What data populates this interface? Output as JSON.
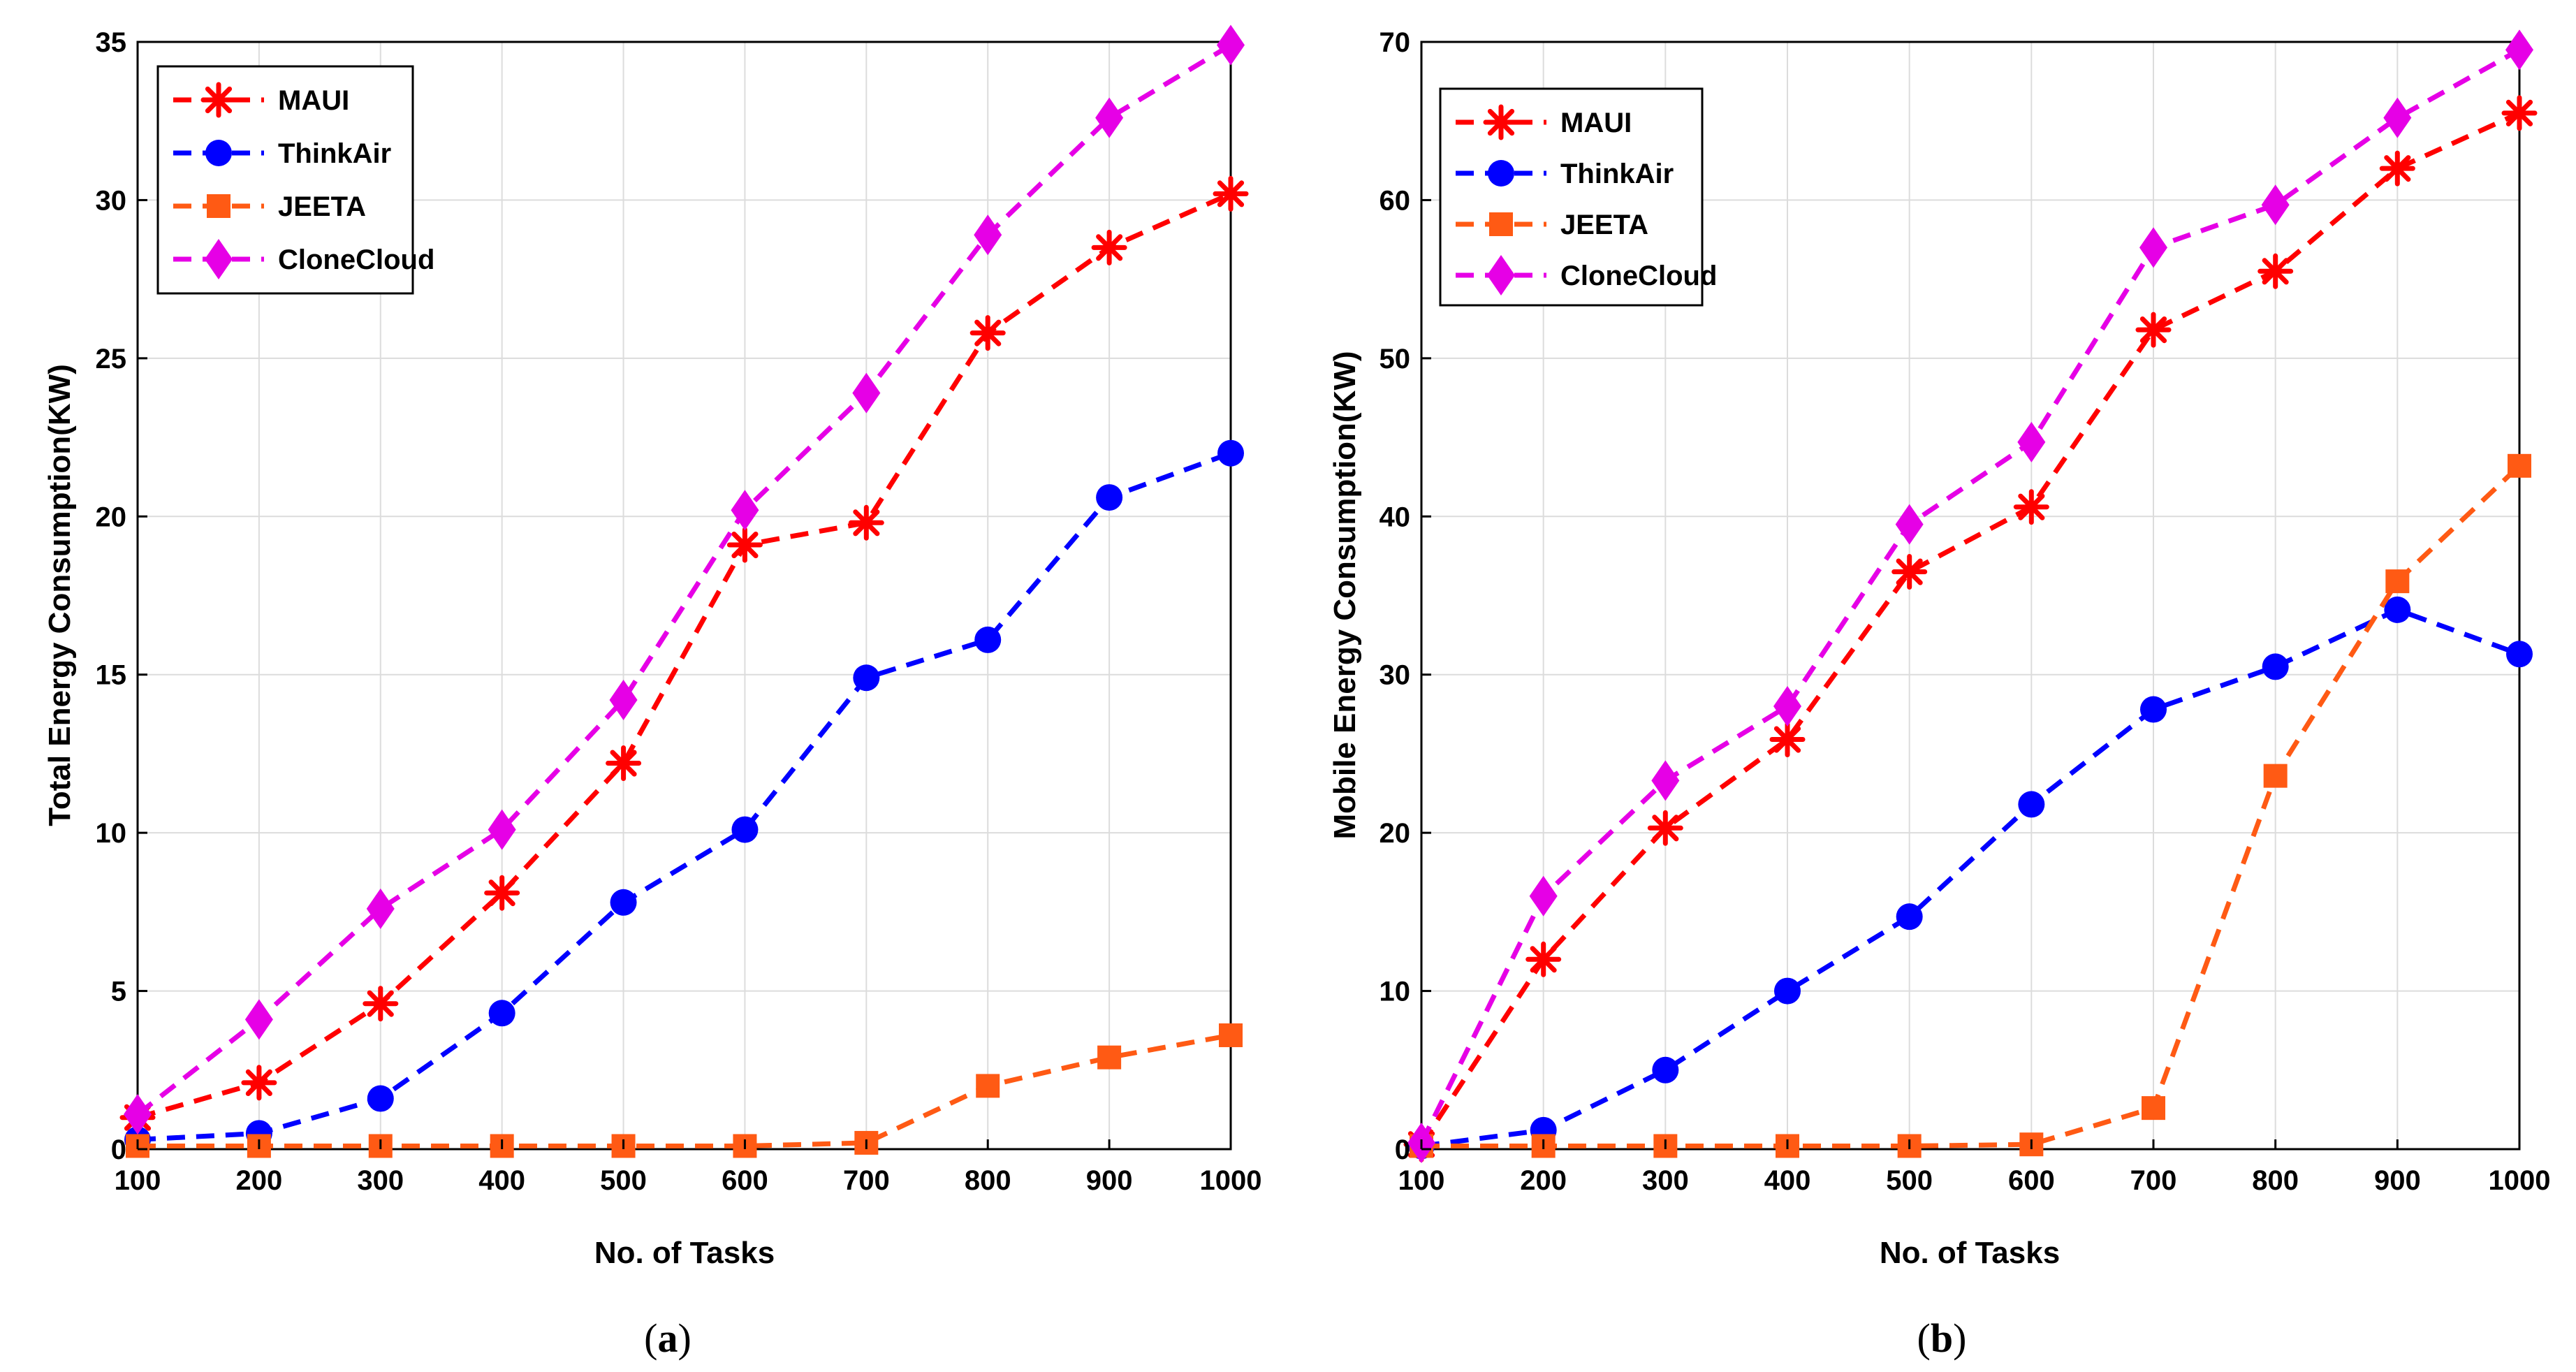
{
  "chart_data": [
    {
      "type": "line",
      "caption_prefix": "(",
      "caption_letter": "a",
      "caption_suffix": ")",
      "xlabel": "No. of Tasks",
      "ylabel": "Total Energy Consumption(KW)",
      "x": [
        100,
        200,
        300,
        400,
        500,
        600,
        700,
        800,
        900,
        1000
      ],
      "xlim": [
        100,
        1000
      ],
      "ylim": [
        0,
        35
      ],
      "yticks": [
        0,
        5,
        10,
        15,
        20,
        25,
        30,
        35
      ],
      "grid": true,
      "legend_position": "top-left",
      "series": [
        {
          "name": "MAUI",
          "color": "#ff0000",
          "marker": "asterisk",
          "values": [
            1.0,
            2.1,
            4.6,
            8.1,
            12.2,
            19.1,
            19.8,
            25.8,
            28.5,
            30.2
          ]
        },
        {
          "name": "ThinkAir",
          "color": "#0000ff",
          "marker": "circle",
          "values": [
            0.3,
            0.5,
            1.6,
            4.3,
            7.8,
            10.1,
            14.9,
            16.1,
            20.6,
            22.0
          ]
        },
        {
          "name": "JEETA",
          "color": "#ff5a14",
          "marker": "square",
          "values": [
            0.1,
            0.1,
            0.1,
            0.1,
            0.1,
            0.1,
            0.2,
            2.0,
            2.9,
            3.6
          ]
        },
        {
          "name": "CloneCloud",
          "color": "#e600e6",
          "marker": "diamond",
          "values": [
            1.1,
            4.1,
            7.6,
            10.1,
            14.2,
            20.2,
            23.9,
            28.9,
            32.6,
            34.9
          ]
        }
      ]
    },
    {
      "type": "line",
      "caption_prefix": "(",
      "caption_letter": "b",
      "caption_suffix": ")",
      "xlabel": "No. of Tasks",
      "ylabel": "Mobile Energy Consumption(KW)",
      "x": [
        100,
        200,
        300,
        400,
        500,
        600,
        700,
        800,
        900,
        1000
      ],
      "xlim": [
        100,
        1000
      ],
      "ylim": [
        0,
        70
      ],
      "yticks": [
        0,
        10,
        20,
        30,
        40,
        50,
        60,
        70
      ],
      "grid": true,
      "legend_position": "top-left",
      "series": [
        {
          "name": "MAUI",
          "color": "#ff0000",
          "marker": "asterisk",
          "values": [
            0.3,
            12.0,
            20.3,
            25.9,
            36.5,
            40.6,
            51.8,
            55.5,
            62.0,
            65.5
          ]
        },
        {
          "name": "ThinkAir",
          "color": "#0000ff",
          "marker": "circle",
          "values": [
            0.2,
            1.2,
            5.0,
            10.0,
            14.7,
            21.8,
            27.8,
            30.5,
            34.1,
            31.3
          ]
        },
        {
          "name": "JEETA",
          "color": "#ff5a14",
          "marker": "square",
          "values": [
            0.2,
            0.2,
            0.2,
            0.2,
            0.2,
            0.3,
            2.6,
            23.6,
            35.9,
            43.2
          ]
        },
        {
          "name": "CloneCloud",
          "color": "#e600e6",
          "marker": "diamond",
          "values": [
            0.4,
            16.0,
            23.3,
            28.0,
            39.5,
            44.7,
            57.0,
            59.7,
            65.2,
            69.5
          ]
        }
      ]
    }
  ]
}
